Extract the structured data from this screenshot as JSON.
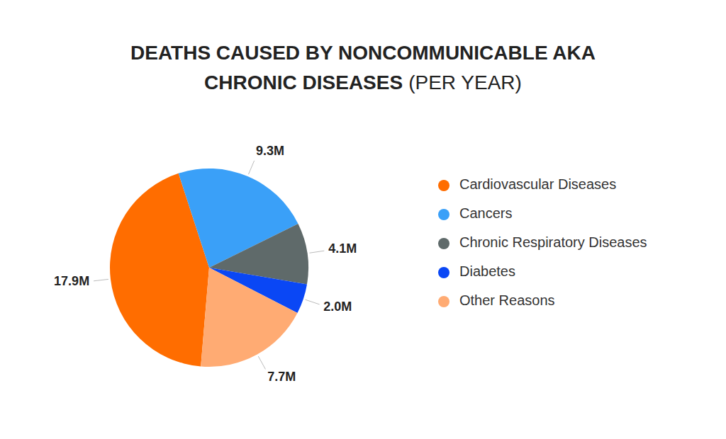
{
  "chart_data": {
    "type": "pie",
    "title": "DEATHS CAUSED BY NONCOMMUNICABLE AKA CHRONIC DISEASES",
    "subtitle": "(PER YEAR)",
    "categories": [
      "Cardiovascular Diseases",
      "Cancers",
      "Chronic Respiratory Diseases",
      "Diabetes",
      "Other Reasons"
    ],
    "values": [
      17.9,
      9.3,
      4.1,
      2.0,
      7.7
    ],
    "value_labels": [
      "17.9M",
      "9.3M",
      "4.1M",
      "2.0M",
      "7.7M"
    ],
    "colors": [
      "#ff6d00",
      "#3aa0f8",
      "#5f6a6a",
      "#0a47f5",
      "#ffab73"
    ],
    "data_labels": true
  }
}
